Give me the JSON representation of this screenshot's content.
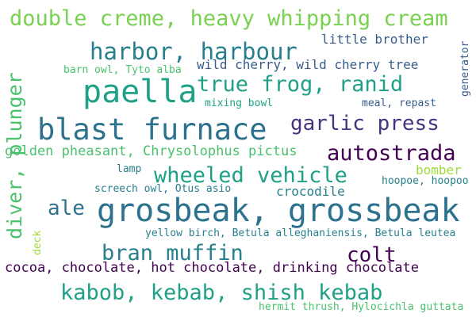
{
  "word_cloud": {
    "colors": {
      "background": "#ffffff",
      "dark_purple": "#440154",
      "purple": "#46327e",
      "slate_blue": "#365c8d",
      "teal_blue": "#277f8e",
      "teal": "#1fa187",
      "green": "#4ac16d",
      "light_green": "#a0da39"
    },
    "words": [
      "double creme, heavy whipping cream",
      "harbor, harbour",
      "little brother",
      "generator",
      "wild cherry, wild cherry tree",
      "barn owl, Tyto alba",
      "paella",
      "true frog, ranid",
      "diver, plunger",
      "mixing bowl",
      "meal, repast",
      "blast furnace",
      "garlic press",
      "golden pheasant, Chrysolophus pictus",
      "autostrada",
      "lamp",
      "wheeled vehicle",
      "bomber",
      "screech owl, Otus asio",
      "crocodile",
      "hoopoe, hoopoo",
      "ale",
      "grosbeak, grossbeak",
      "deck",
      "yellow birch, Betula alleghaniensis, Betula leutea",
      "bran muffin",
      "colt",
      "cocoa, chocolate, hot chocolate, drinking chocolate",
      "kabob, kebab, shish kebab",
      "hermit thrush, Hylocichla guttata"
    ]
  }
}
